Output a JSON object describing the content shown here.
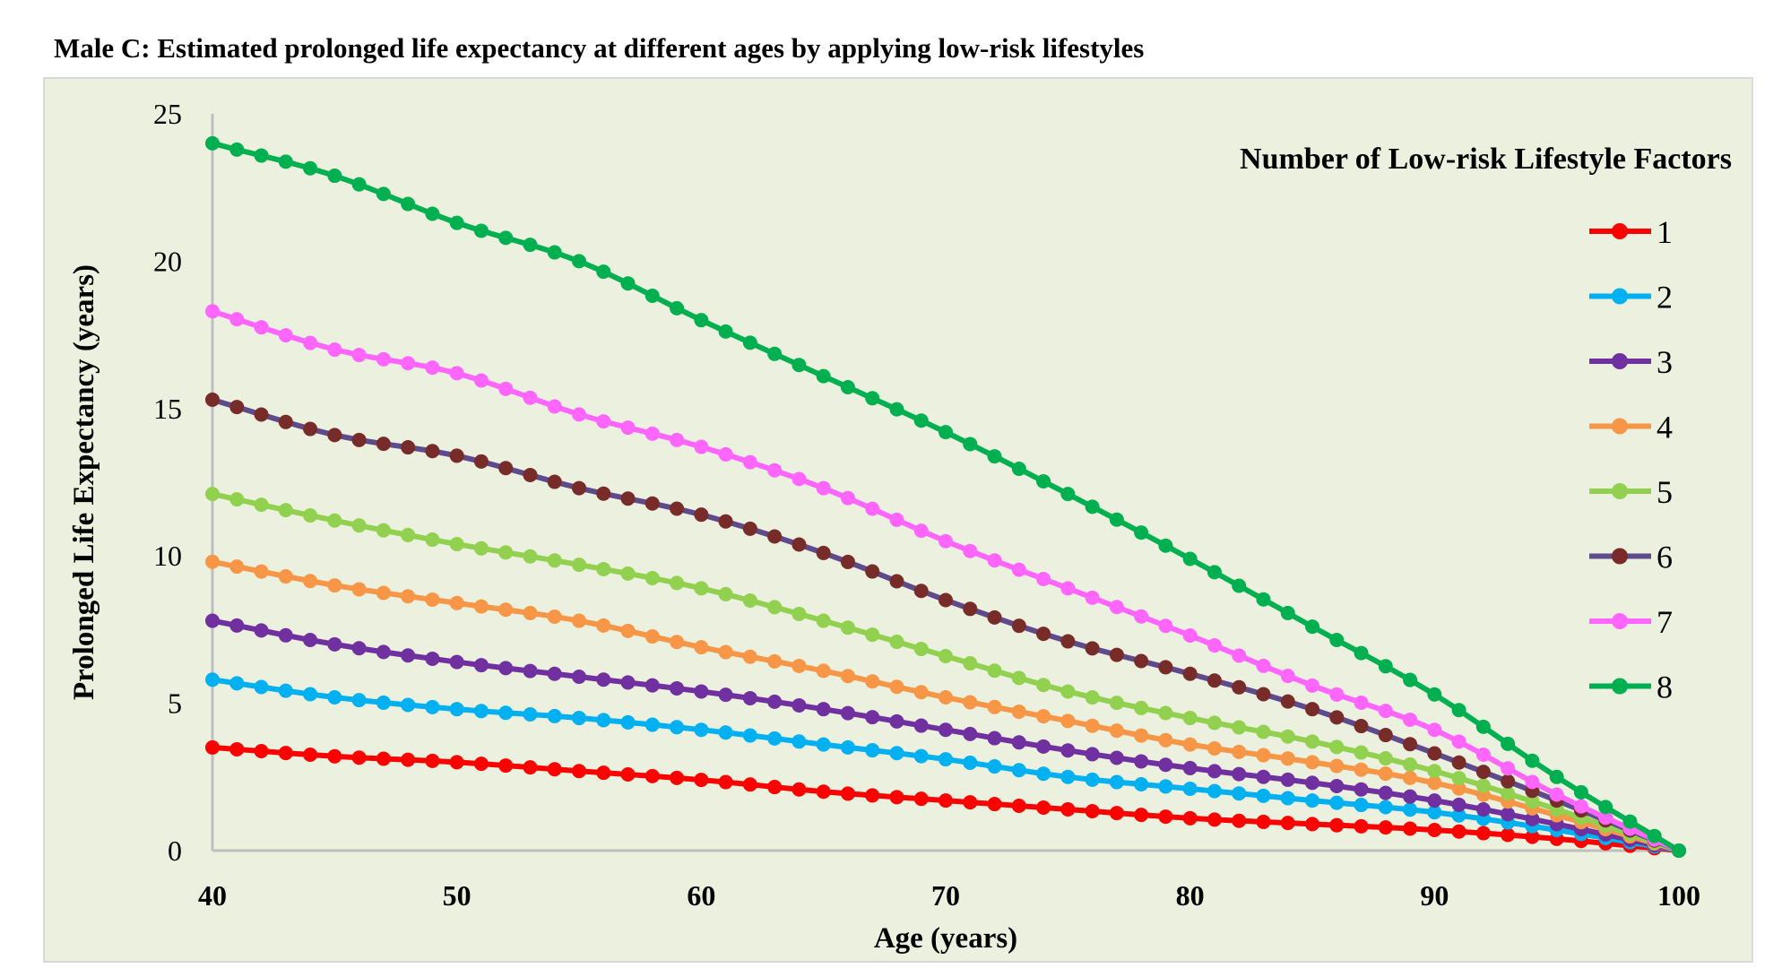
{
  "chart_data": {
    "type": "line",
    "title": "Male C: Estimated prolonged life expectancy at different ages by applying low-risk lifestyles",
    "xlabel": "Age (years)",
    "ylabel": "Prolonged Life Expectancy (years)",
    "xlim": [
      40,
      100
    ],
    "ylim": [
      0,
      25
    ],
    "xticks": [
      "40",
      "50",
      "60",
      "70",
      "80",
      "90",
      "100"
    ],
    "yticks": [
      "0",
      "5",
      "10",
      "15",
      "20",
      "25"
    ],
    "grid": false,
    "markers": "yearly",
    "legend": {
      "title": "Number of Low-risk Lifestyle Factors",
      "position": "top-right"
    },
    "x": [
      40,
      45,
      50,
      55,
      60,
      65,
      70,
      75,
      80,
      85,
      90,
      95,
      100
    ],
    "series": [
      {
        "name": "1",
        "color": "#ff0000",
        "marker_color": "#ff0000",
        "values": [
          3.5,
          3.2,
          3.0,
          2.7,
          2.4,
          2.0,
          1.7,
          1.4,
          1.1,
          0.9,
          0.7,
          0.4,
          0
        ]
      },
      {
        "name": "2",
        "color": "#00b0f0",
        "marker_color": "#00b0f0",
        "values": [
          5.8,
          5.2,
          4.8,
          4.5,
          4.1,
          3.6,
          3.1,
          2.5,
          2.1,
          1.7,
          1.3,
          0.7,
          0
        ]
      },
      {
        "name": "3",
        "color": "#7030a0",
        "marker_color": "#7030a0",
        "values": [
          7.8,
          7.0,
          6.4,
          5.9,
          5.4,
          4.8,
          4.1,
          3.4,
          2.8,
          2.3,
          1.7,
          0.9,
          0
        ]
      },
      {
        "name": "4",
        "color": "#f79646",
        "marker_color": "#f79646",
        "values": [
          9.8,
          9.0,
          8.4,
          7.8,
          6.9,
          6.1,
          5.2,
          4.4,
          3.6,
          3.0,
          2.3,
          1.2,
          0
        ]
      },
      {
        "name": "5",
        "color": "#92d050",
        "marker_color": "#92d050",
        "values": [
          12.1,
          11.2,
          10.4,
          9.7,
          8.9,
          7.8,
          6.6,
          5.4,
          4.5,
          3.7,
          2.7,
          1.4,
          0
        ]
      },
      {
        "name": "6",
        "color": "#5f4b8b",
        "marker_color": "#772c2a",
        "values": [
          15.3,
          14.1,
          13.4,
          12.3,
          11.4,
          10.1,
          8.5,
          7.1,
          6.0,
          4.8,
          3.3,
          1.7,
          0
        ]
      },
      {
        "name": "7",
        "color": "#ff66ff",
        "marker_color": "#ff66ff",
        "values": [
          18.3,
          17.0,
          16.2,
          14.8,
          13.7,
          12.3,
          10.5,
          8.9,
          7.3,
          5.6,
          4.1,
          1.9,
          0
        ]
      },
      {
        "name": "8",
        "color": "#00b050",
        "marker_color": "#00b050",
        "values": [
          24.0,
          22.9,
          21.3,
          20.0,
          18.0,
          16.1,
          14.2,
          12.1,
          9.9,
          7.6,
          5.3,
          2.5,
          0
        ]
      }
    ]
  }
}
